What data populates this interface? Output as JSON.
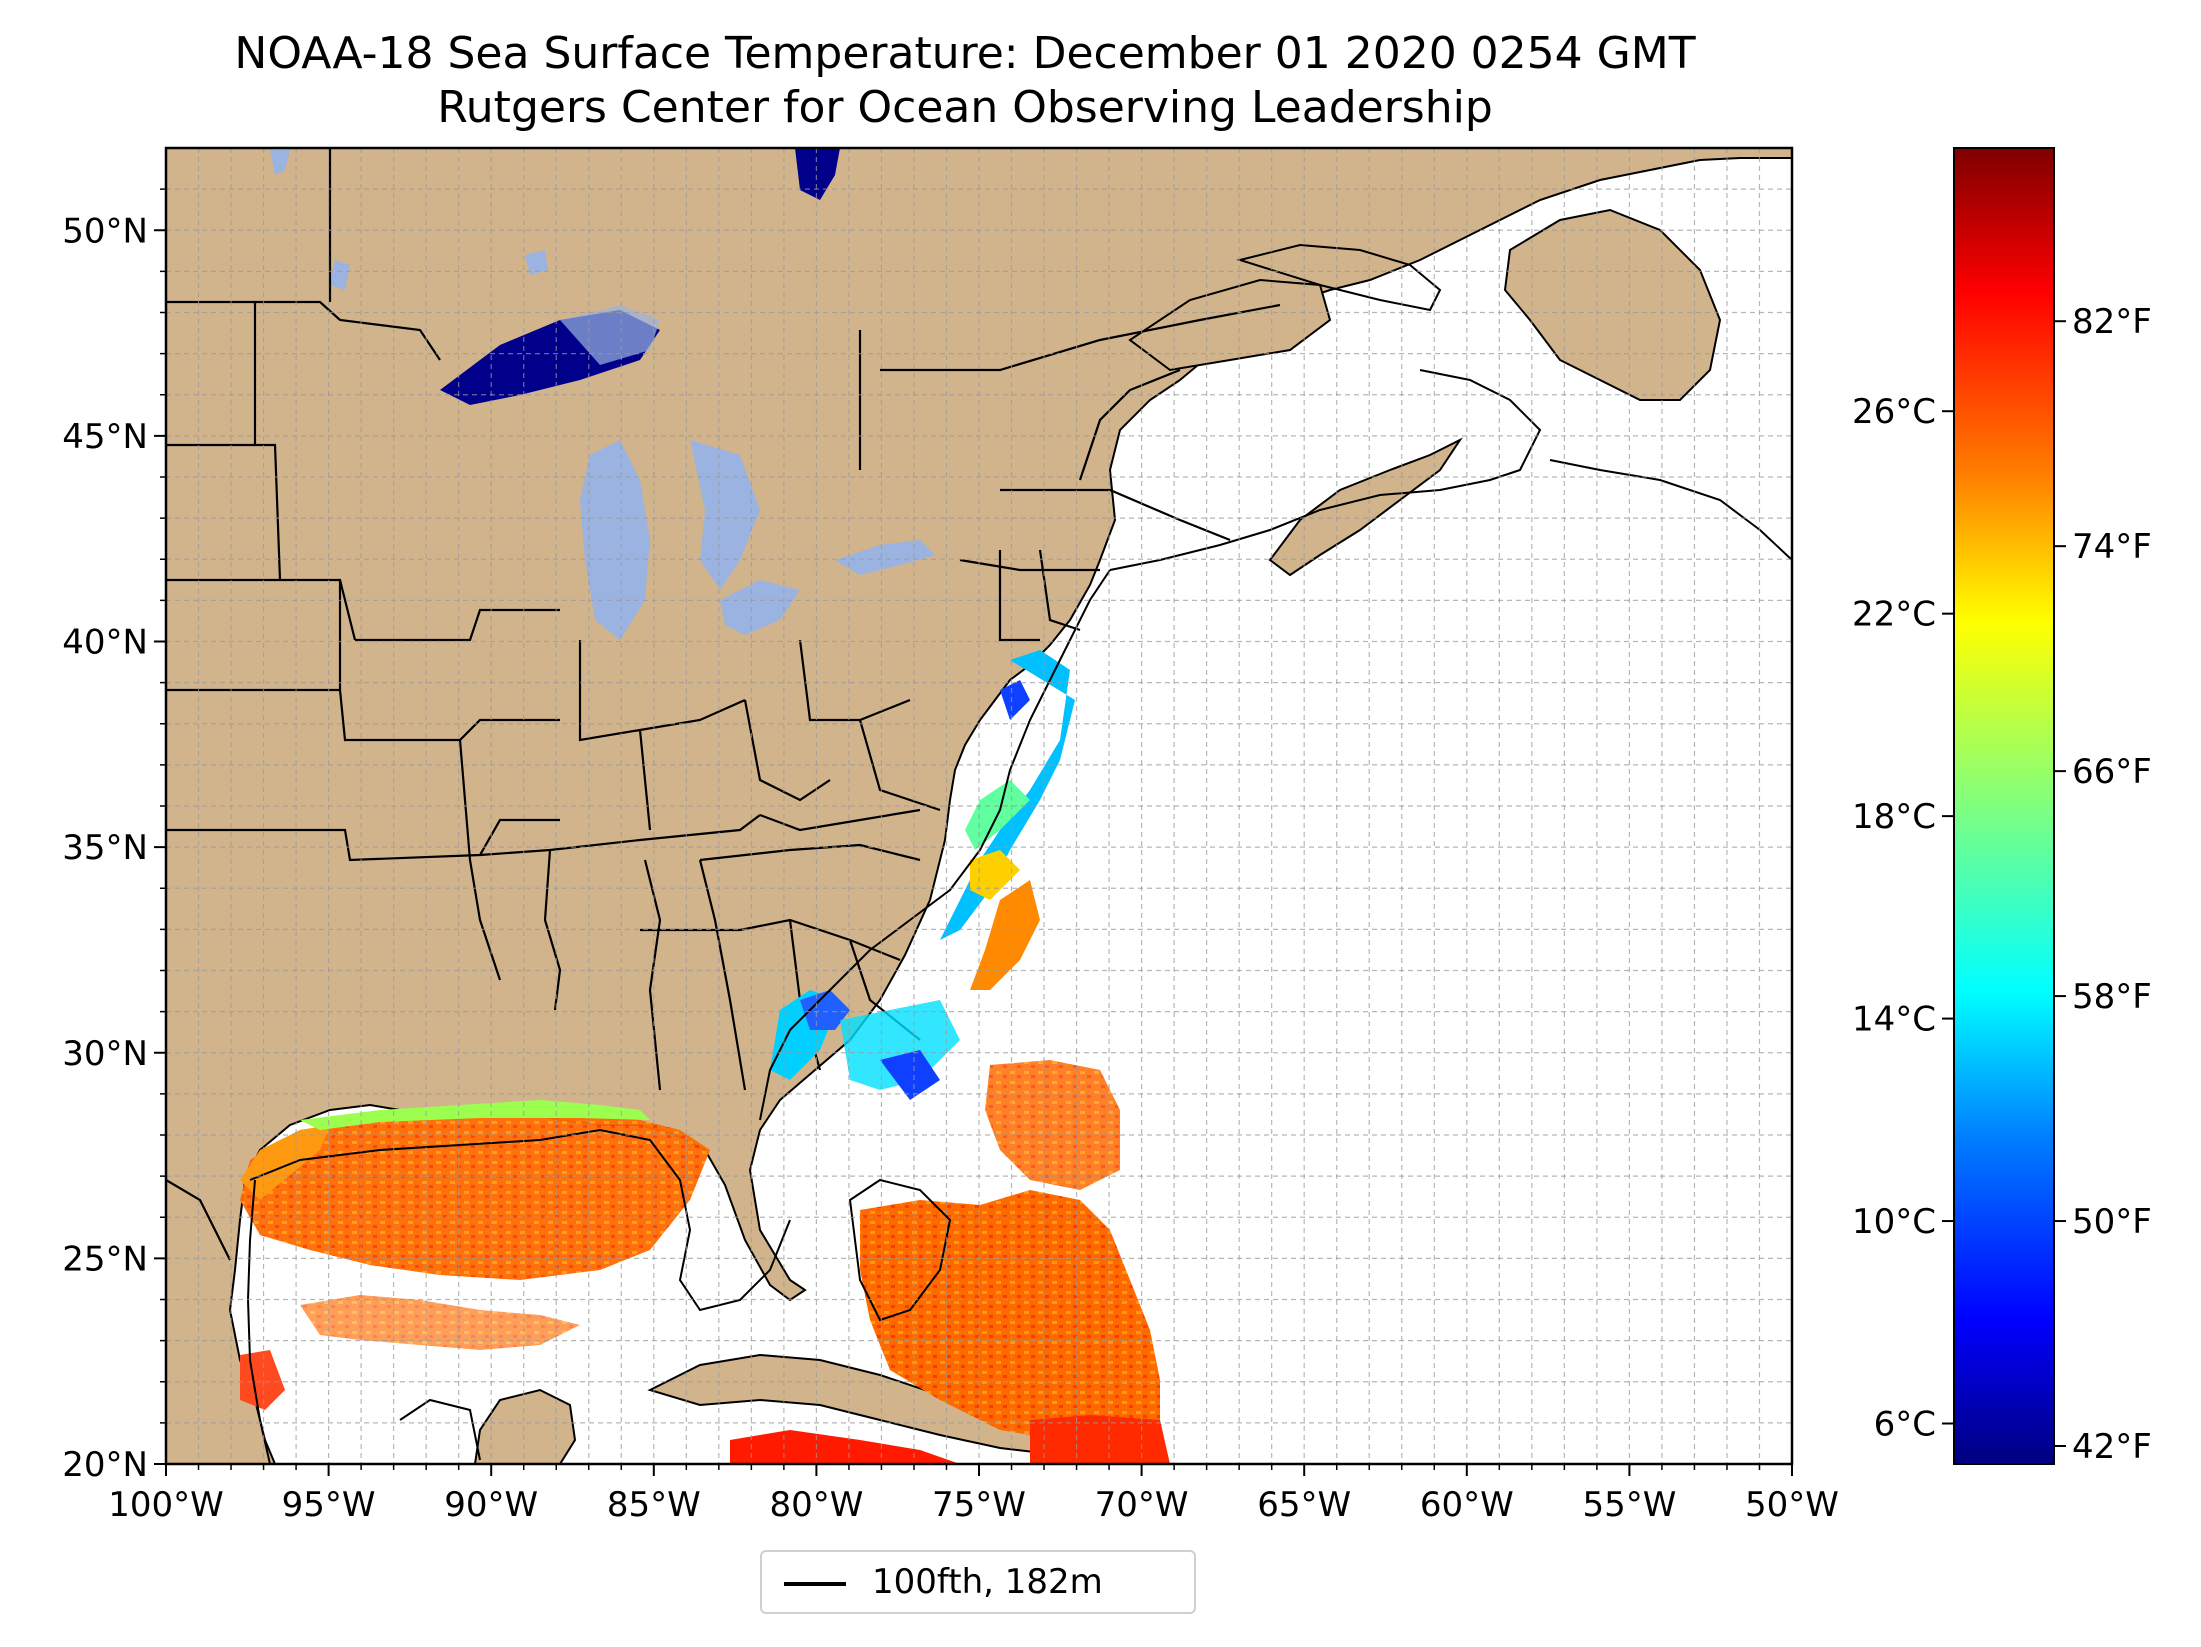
{
  "title": "NOAA-18 Sea Surface Temperature: December 01 2020 0254 GMT",
  "subtitle": "Rutgers Center for Ocean Observing Leadership",
  "map": {
    "lon_range": [
      -100,
      -50
    ],
    "lat_range": [
      20,
      52
    ],
    "lat_ticks": [
      "20°N",
      "25°N",
      "30°N",
      "35°N",
      "40°N",
      "45°N",
      "50°N"
    ],
    "lon_ticks": [
      "100°W",
      "95°W",
      "90°W",
      "85°W",
      "80°W",
      "75°W",
      "70°W",
      "65°W",
      "60°W",
      "55°W",
      "50°W"
    ],
    "grid": "dashed 1° graticule",
    "land_color": "#d2b48c",
    "lake_color": "#9ab3e0",
    "ocean_no_data_color": "#ffffff"
  },
  "colorbar": {
    "colormap": "jet",
    "celsius_ticks": [
      "6°C",
      "10°C",
      "14°C",
      "18°C",
      "22°C",
      "26°C"
    ],
    "fahrenheit_ticks": [
      "42°F",
      "50°F",
      "58°F",
      "66°F",
      "74°F",
      "82°F"
    ],
    "colors": [
      "#00007f",
      "#0000ff",
      "#007fff",
      "#00ffff",
      "#7fff7f",
      "#ffff00",
      "#ff7f00",
      "#ff0000",
      "#7f0000"
    ]
  },
  "legend": {
    "label": "100fth, 182m"
  }
}
